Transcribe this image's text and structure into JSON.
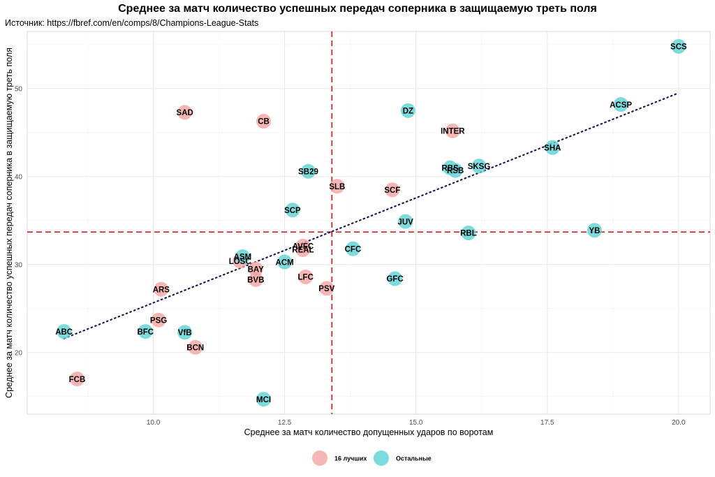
{
  "chart_data": {
    "type": "scatter",
    "title": "Среднее за матч количество успешных передач соперника в защищаемую треть поля",
    "subtitle": "Источник: https://fbref.com/en/comps/8/Champions-League-Stats",
    "xlabel": "Среднее за матч количество допущенных ударов по воротам",
    "ylabel": "Среднее за матч количество успешных передач соперника в защищаемую треть поля",
    "xlim": [
      7.6,
      20.6
    ],
    "ylim": [
      13,
      56.5
    ],
    "xticks": [
      10.0,
      12.5,
      15.0,
      17.5,
      20.0
    ],
    "xtick_labels": [
      "10.0",
      "12.5",
      "15.0",
      "17.5",
      "20.0"
    ],
    "yticks": [
      20,
      30,
      40,
      50
    ],
    "ytick_labels": [
      "20",
      "30",
      "40",
      "50"
    ],
    "grid": true,
    "legend_position": "bottom",
    "reference_lines": {
      "vertical_x": 13.4,
      "horizontal_y": 33.7,
      "color": "#c62828"
    },
    "trend_line": {
      "x": [
        8.3,
        20.0
      ],
      "y": [
        21.6,
        49.5
      ],
      "color": "#1a1a5e"
    },
    "colors": {
      "top16": "#f4a6a3",
      "others": "#5fd3d6"
    },
    "series": [
      {
        "name": "16 лучших",
        "key": "top16",
        "points": [
          {
            "label": "SAD",
            "x": 10.6,
            "y": 47.3
          },
          {
            "label": "CB",
            "x": 12.1,
            "y": 46.3
          },
          {
            "label": "INTER",
            "x": 15.7,
            "y": 45.2
          },
          {
            "label": "SLB",
            "x": 13.5,
            "y": 38.9
          },
          {
            "label": "SCF",
            "x": 14.55,
            "y": 38.5
          },
          {
            "label": "AVFC",
            "x": 12.85,
            "y": 32.1
          },
          {
            "label": "REAL",
            "x": 12.85,
            "y": 31.7
          },
          {
            "label": "LOSC",
            "x": 11.65,
            "y": 30.4
          },
          {
            "label": "BAY",
            "x": 11.95,
            "y": 29.5
          },
          {
            "label": "BVB",
            "x": 11.95,
            "y": 28.3
          },
          {
            "label": "LFC",
            "x": 12.9,
            "y": 28.6
          },
          {
            "label": "PSV",
            "x": 13.3,
            "y": 27.3
          },
          {
            "label": "ARS",
            "x": 10.15,
            "y": 27.2
          },
          {
            "label": "PSG",
            "x": 10.1,
            "y": 23.7
          },
          {
            "label": "BCN",
            "x": 10.8,
            "y": 20.6
          },
          {
            "label": "FCB",
            "x": 8.55,
            "y": 17.0
          }
        ]
      },
      {
        "name": "Остальные",
        "key": "others",
        "points": [
          {
            "label": "SCS",
            "x": 20.0,
            "y": 54.8
          },
          {
            "label": "ACSP",
            "x": 18.9,
            "y": 48.2
          },
          {
            "label": "DZ",
            "x": 14.85,
            "y": 47.5
          },
          {
            "label": "SHA",
            "x": 17.6,
            "y": 43.3
          },
          {
            "label": "SKSG",
            "x": 16.2,
            "y": 41.2
          },
          {
            "label": "RBS",
            "x": 15.65,
            "y": 41.0
          },
          {
            "label": "RSB",
            "x": 15.75,
            "y": 40.7
          },
          {
            "label": "SB29",
            "x": 12.95,
            "y": 40.6
          },
          {
            "label": "SCP",
            "x": 12.65,
            "y": 36.2
          },
          {
            "label": "JUV",
            "x": 14.8,
            "y": 34.9
          },
          {
            "label": "RBL",
            "x": 16.0,
            "y": 33.6
          },
          {
            "label": "YB",
            "x": 18.4,
            "y": 33.9
          },
          {
            "label": "CFC",
            "x": 13.8,
            "y": 31.8
          },
          {
            "label": "ASM",
            "x": 11.7,
            "y": 30.9
          },
          {
            "label": "ACM",
            "x": 12.5,
            "y": 30.3
          },
          {
            "label": "GFC",
            "x": 14.6,
            "y": 28.4
          },
          {
            "label": "ABC",
            "x": 8.3,
            "y": 22.4
          },
          {
            "label": "BFC",
            "x": 9.85,
            "y": 22.4
          },
          {
            "label": "VfB",
            "x": 10.6,
            "y": 22.3
          },
          {
            "label": "MCI",
            "x": 12.1,
            "y": 14.7
          }
        ]
      }
    ]
  }
}
